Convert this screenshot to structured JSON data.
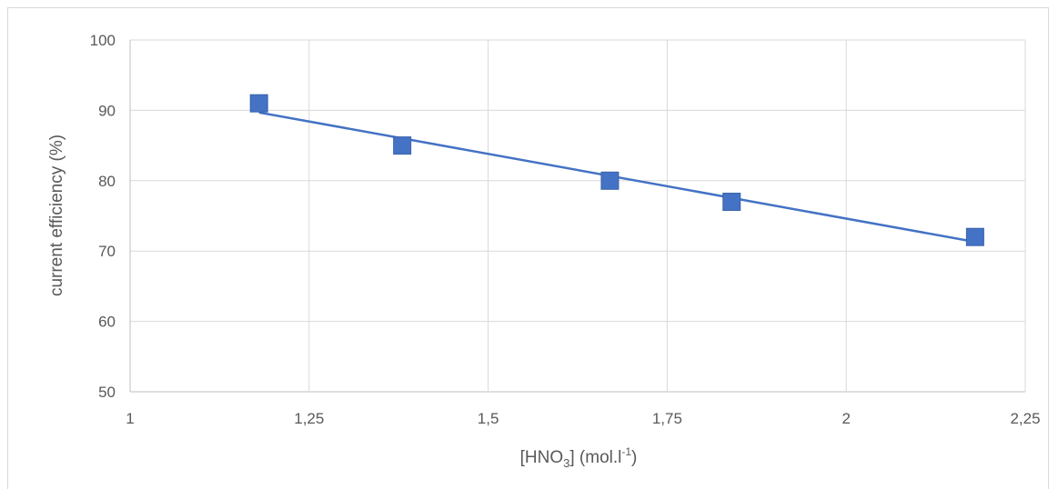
{
  "chart_data": {
    "type": "scatter",
    "title": "",
    "xlabel": {
      "main": "[HNO",
      "sub": "3",
      "mid": "] (mol.l",
      "sup": "-1",
      "end": ")"
    },
    "ylabel": "current efficiency (%)",
    "xlim": [
      1,
      2.25
    ],
    "ylim": [
      50,
      100
    ],
    "x_ticks": [
      1,
      1.25,
      1.5,
      1.75,
      2,
      2.25
    ],
    "x_tick_labels": [
      "1",
      "1,25",
      "1,5",
      "1,75",
      "2",
      "2,25"
    ],
    "y_ticks": [
      50,
      60,
      70,
      80,
      90,
      100
    ],
    "y_tick_labels": [
      "50",
      "60",
      "70",
      "80",
      "90",
      "100"
    ],
    "grid": true,
    "legend": "none",
    "marker_color": "#4472c4",
    "trendline_color": "#4472c4",
    "series": [
      {
        "points": [
          {
            "x": 1.18,
            "y": 91
          },
          {
            "x": 1.38,
            "y": 85
          },
          {
            "x": 1.67,
            "y": 80
          },
          {
            "x": 1.84,
            "y": 77
          },
          {
            "x": 2.18,
            "y": 72
          }
        ],
        "trendline": {
          "type": "linear",
          "from": {
            "x": 1.18,
            "y": 89.7
          },
          "to": {
            "x": 2.18,
            "y": 71.3
          }
        }
      }
    ]
  }
}
